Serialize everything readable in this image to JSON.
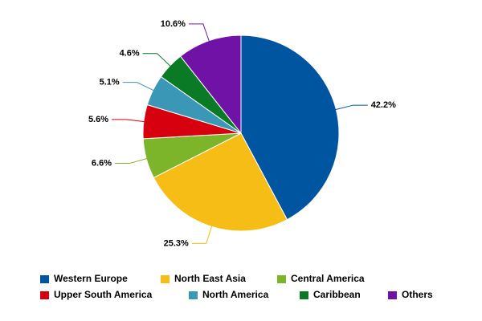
{
  "chart_data": {
    "type": "pie",
    "categories": [
      "Western Europe",
      "North East Asia",
      "Central America",
      "Upper South America",
      "North America",
      "Caribbean",
      "Others"
    ],
    "values": [
      42.2,
      25.3,
      6.6,
      5.6,
      5.1,
      4.6,
      10.6
    ],
    "value_labels": [
      "42.2%",
      "25.3%",
      "6.6%",
      "5.6%",
      "5.1%",
      "4.6%",
      "10.6%"
    ],
    "colors": [
      "#0055a0",
      "#f5bd16",
      "#7db52a",
      "#d7000f",
      "#3a97b6",
      "#0a7a26",
      "#7112a6"
    ],
    "legend": "bottom"
  }
}
